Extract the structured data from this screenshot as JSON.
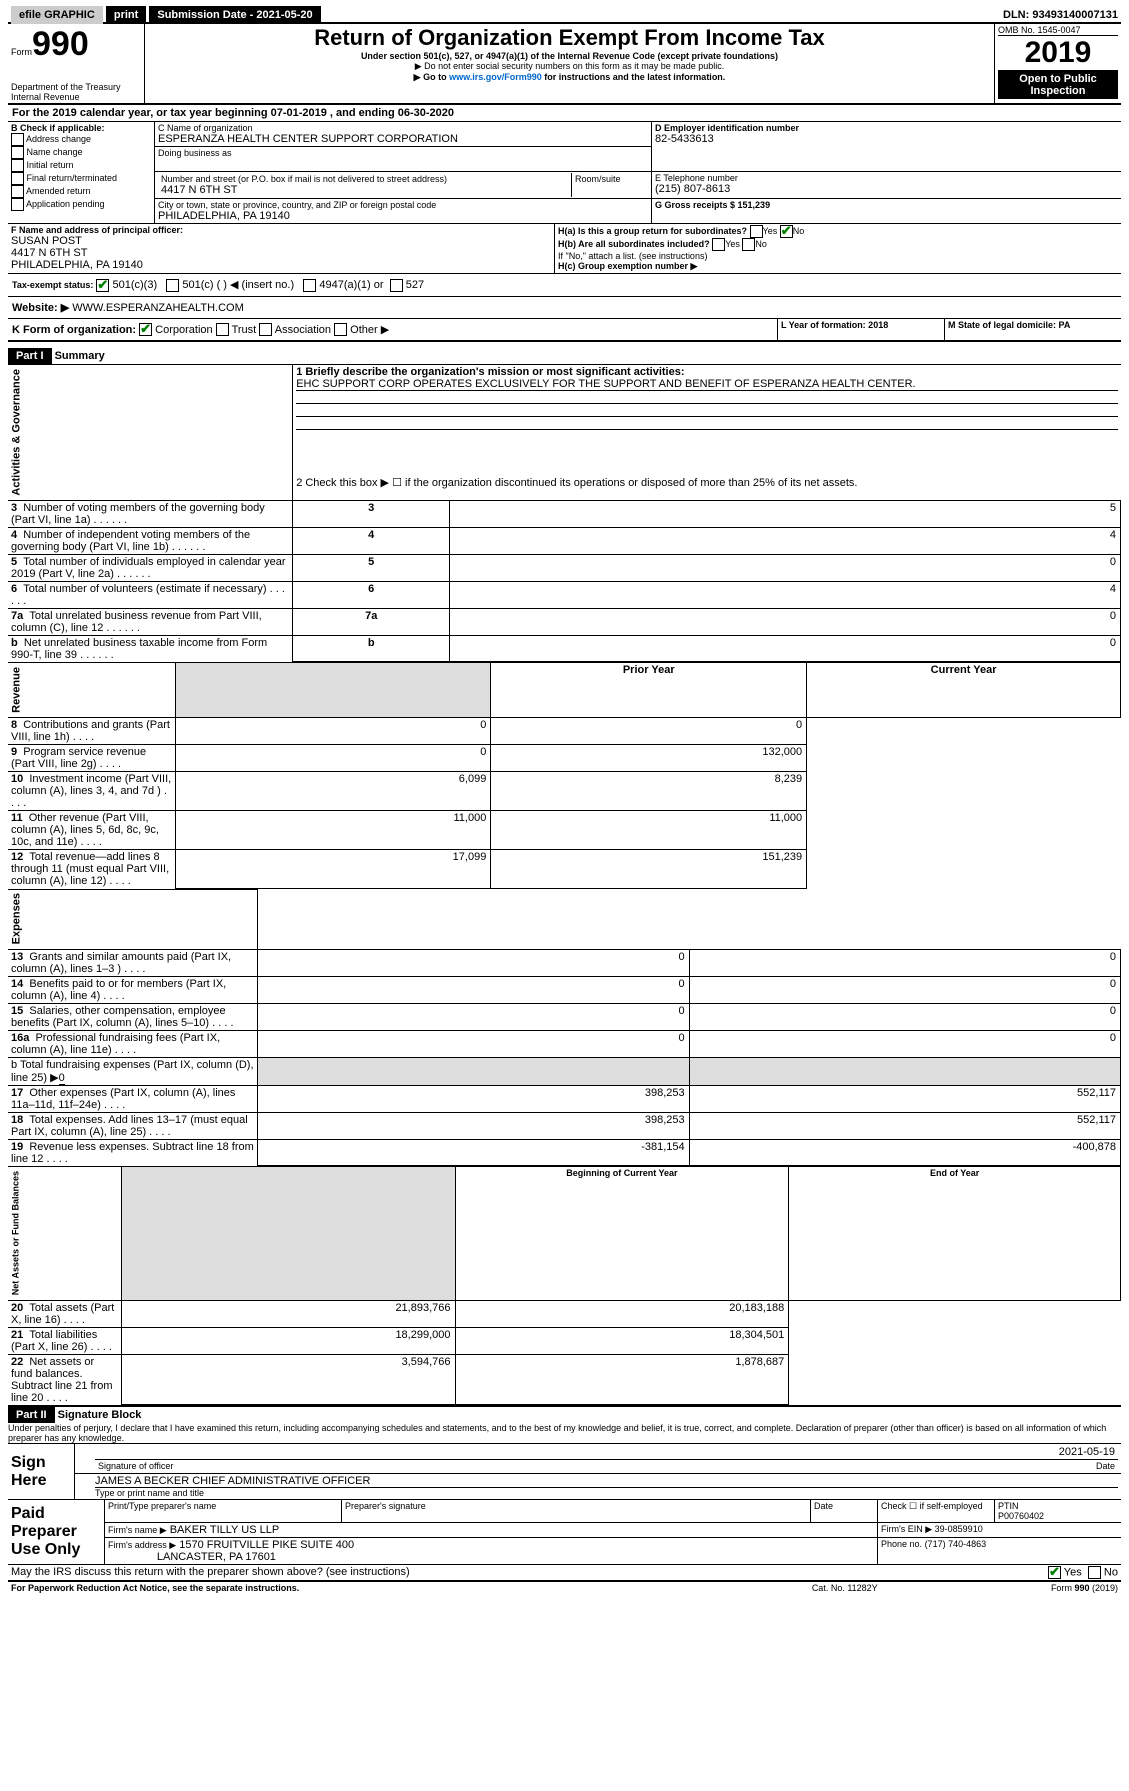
{
  "top_bar": {
    "efile": "efile GRAPHIC",
    "print": "print",
    "submission_label": "Submission Date - 2021-05-20",
    "dln": "DLN: 93493140007131"
  },
  "header": {
    "form_word": "Form",
    "form_num": "990",
    "dept": "Department of the Treasury",
    "irs_line": "Internal Revenue",
    "title": "Return of Organization Exempt From Income Tax",
    "subtitle": "Under section 501(c), 527, or 4947(a)(1) of the Internal Revenue Code (except private foundations)",
    "note1": "▶ Do not enter social security numbers on this form as it may be made public.",
    "note2_pre": "▶ Go to ",
    "note2_link": "www.irs.gov/Form990",
    "note2_post": " for instructions and the latest information.",
    "omb": "OMB No. 1545-0047",
    "year": "2019",
    "open": "Open to Public",
    "inspection": "Inspection"
  },
  "period": {
    "line": "For the 2019 calendar year, or tax year beginning 07-01-2019   , and ending 06-30-2020"
  },
  "boxB": {
    "label": "B Check if applicable:",
    "items": [
      "Address change",
      "Name change",
      "Initial return",
      "Final return/terminated",
      "Amended return",
      "Application pending"
    ]
  },
  "boxC": {
    "name_label": "C Name of organization",
    "name": "ESPERANZA HEALTH CENTER SUPPORT CORPORATION",
    "dba_label": "Doing business as",
    "street_label": "Number and street (or P.O. box if mail is not delivered to street address)",
    "room_label": "Room/suite",
    "street": "4417 N 6TH ST",
    "city_label": "City or town, state or province, country, and ZIP or foreign postal code",
    "city": "PHILADELPHIA, PA  19140"
  },
  "boxD": {
    "label": "D Employer identification number",
    "value": "82-5433613"
  },
  "boxE": {
    "label": "E Telephone number",
    "value": "(215) 807-8613"
  },
  "boxG": {
    "label": "G Gross receipts $ 151,239"
  },
  "boxF": {
    "label": "F Name and address of principal officer:",
    "name": "SUSAN POST",
    "street": "4417 N 6TH ST",
    "city": "PHILADELPHIA, PA  19140"
  },
  "boxH": {
    "a": "H(a)  Is this a group return for subordinates?",
    "b": "H(b)  Are all subordinates included?",
    "b_note": "If \"No,\" attach a list. (see instructions)",
    "c": "H(c)  Group exemption number ▶"
  },
  "boxI": {
    "label": "Tax-exempt status:",
    "opts": [
      "501(c)(3)",
      "501(c) (  ) ◀ (insert no.)",
      "4947(a)(1) or",
      "527"
    ]
  },
  "boxJ": {
    "label": "Website: ▶",
    "value": "WWW.ESPERANZAHEALTH.COM"
  },
  "boxK": {
    "label": "K Form of organization:",
    "opts": [
      "Corporation",
      "Trust",
      "Association",
      "Other ▶"
    ]
  },
  "boxL": {
    "label": "L Year of formation: 2018"
  },
  "boxM": {
    "label": "M State of legal domicile: PA"
  },
  "part1": {
    "header": "Part I",
    "title": "Summary",
    "l1": "1  Briefly describe the organization's mission or most significant activities:",
    "l1_text": "EHC SUPPORT CORP OPERATES EXCLUSIVELY FOR THE SUPPORT AND BENEFIT OF ESPERANZA HEALTH CENTER.",
    "l2": "2  Check this box ▶ ☐  if the organization discontinued its operations or disposed of more than 25% of its net assets.",
    "rows_gov": [
      {
        "n": "3",
        "t": "Number of voting members of the governing body (Part VI, line 1a)",
        "v": "5"
      },
      {
        "n": "4",
        "t": "Number of independent voting members of the governing body (Part VI, line 1b)",
        "v": "4"
      },
      {
        "n": "5",
        "t": "Total number of individuals employed in calendar year 2019 (Part V, line 2a)",
        "v": "0"
      },
      {
        "n": "6",
        "t": "Total number of volunteers (estimate if necessary)",
        "v": "4"
      },
      {
        "n": "7a",
        "t": "Total unrelated business revenue from Part VIII, column (C), line 12",
        "v": "0"
      },
      {
        "n": "b",
        "t": "Net unrelated business taxable income from Form 990-T, line 39",
        "v": "0"
      }
    ],
    "col_prior": "Prior Year",
    "col_current": "Current Year",
    "rows_rev": [
      {
        "n": "8",
        "t": "Contributions and grants (Part VIII, line 1h)",
        "p": "0",
        "c": "0"
      },
      {
        "n": "9",
        "t": "Program service revenue (Part VIII, line 2g)",
        "p": "0",
        "c": "132,000"
      },
      {
        "n": "10",
        "t": "Investment income (Part VIII, column (A), lines 3, 4, and 7d )",
        "p": "6,099",
        "c": "8,239"
      },
      {
        "n": "11",
        "t": "Other revenue (Part VIII, column (A), lines 5, 6d, 8c, 9c, 10c, and 11e)",
        "p": "11,000",
        "c": "11,000"
      },
      {
        "n": "12",
        "t": "Total revenue—add lines 8 through 11 (must equal Part VIII, column (A), line 12)",
        "p": "17,099",
        "c": "151,239"
      }
    ],
    "rows_exp": [
      {
        "n": "13",
        "t": "Grants and similar amounts paid (Part IX, column (A), lines 1–3 )",
        "p": "0",
        "c": "0"
      },
      {
        "n": "14",
        "t": "Benefits paid to or for members (Part IX, column (A), line 4)",
        "p": "0",
        "c": "0"
      },
      {
        "n": "15",
        "t": "Salaries, other compensation, employee benefits (Part IX, column (A), lines 5–10)",
        "p": "0",
        "c": "0"
      },
      {
        "n": "16a",
        "t": "Professional fundraising fees (Part IX, column (A), line 11e)",
        "p": "0",
        "c": "0"
      }
    ],
    "l16b": "b  Total fundraising expenses (Part IX, column (D), line 25) ▶",
    "l16b_val": "0",
    "rows_exp2": [
      {
        "n": "17",
        "t": "Other expenses (Part IX, column (A), lines 11a–11d, 11f–24e)",
        "p": "398,253",
        "c": "552,117"
      },
      {
        "n": "18",
        "t": "Total expenses. Add lines 13–17 (must equal Part IX, column (A), line 25)",
        "p": "398,253",
        "c": "552,117"
      },
      {
        "n": "19",
        "t": "Revenue less expenses. Subtract line 18 from line 12",
        "p": "-381,154",
        "c": "-400,878"
      }
    ],
    "col_begin": "Beginning of Current Year",
    "col_end": "End of Year",
    "rows_net": [
      {
        "n": "20",
        "t": "Total assets (Part X, line 16)",
        "p": "21,893,766",
        "c": "20,183,188"
      },
      {
        "n": "21",
        "t": "Total liabilities (Part X, line 26)",
        "p": "18,299,000",
        "c": "18,304,501"
      },
      {
        "n": "22",
        "t": "Net assets or fund balances. Subtract line 21 from line 20",
        "p": "3,594,766",
        "c": "1,878,687"
      }
    ],
    "side_gov": "Activities & Governance",
    "side_rev": "Revenue",
    "side_exp": "Expenses",
    "side_net": "Net Assets or Fund Balances"
  },
  "part2": {
    "header": "Part II",
    "title": "Signature Block",
    "perjury": "Under penalties of perjury, I declare that I have examined this return, including accompanying schedules and statements, and to the best of my knowledge and belief, it is true, correct, and complete. Declaration of preparer (other than officer) is based on all information of which preparer has any knowledge.",
    "sign_here": "Sign Here",
    "sig_officer": "Signature of officer",
    "sig_date": "2021-05-19",
    "date_label": "Date",
    "officer_name": "JAMES A BECKER  CHIEF ADMINISTRATIVE OFFICER",
    "type_name": "Type or print name and title",
    "paid": "Paid Preparer Use Only",
    "prep_name_label": "Print/Type preparer's name",
    "prep_sig_label": "Preparer's signature",
    "prep_date_label": "Date",
    "check_label": "Check ☐ if self-employed",
    "ptin_label": "PTIN",
    "ptin": "P00760402",
    "firm_name_label": "Firm's name   ▶",
    "firm_name": "BAKER TILLY US LLP",
    "firm_ein_label": "Firm's EIN ▶",
    "firm_ein": "39-0859910",
    "firm_addr_label": "Firm's address ▶",
    "firm_addr1": "1570 FRUITVILLE PIKE SUITE 400",
    "firm_addr2": "LANCASTER, PA  17601",
    "phone_label": "Phone no.",
    "phone": "(717) 740-4863"
  },
  "footer": {
    "discuss": "May the IRS discuss this return with the preparer shown above? (see instructions)",
    "pra": "For Paperwork Reduction Act Notice, see the separate instructions.",
    "cat": "Cat. No. 11282Y",
    "form": "Form 990 (2019)"
  }
}
